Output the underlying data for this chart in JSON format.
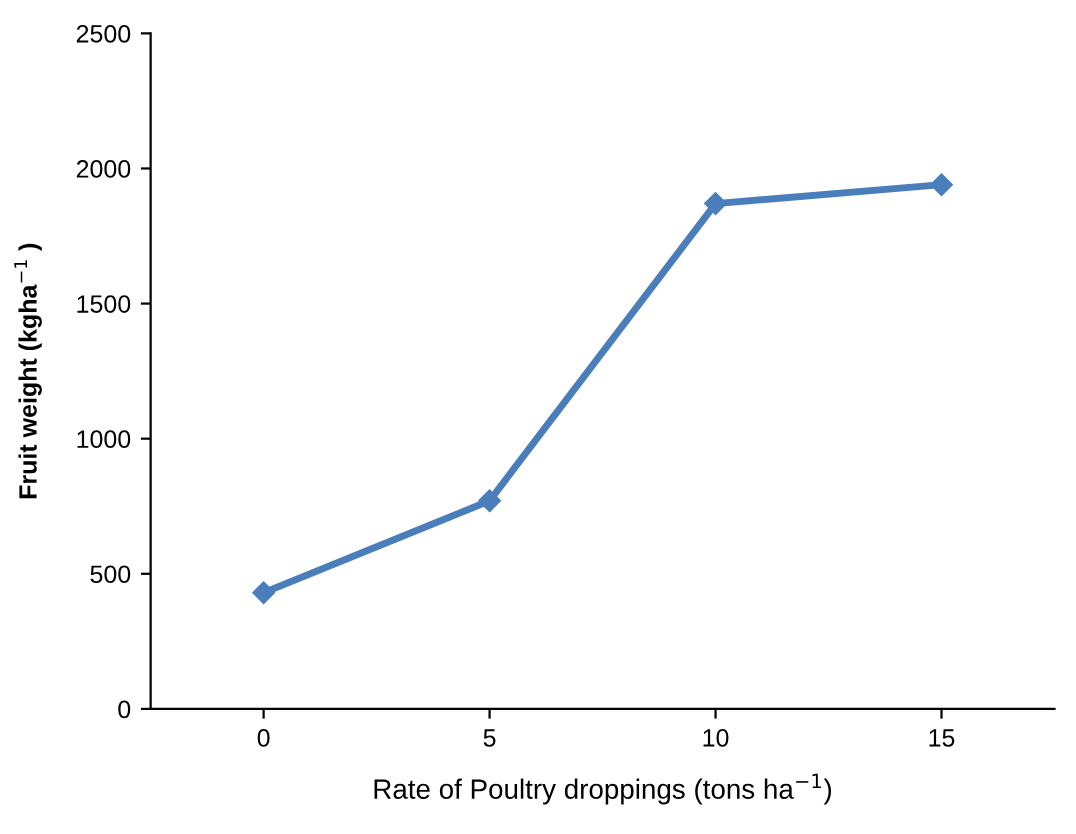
{
  "chart_data": {
    "type": "line",
    "xlabel": "Rate of Poultry droppings (tons ha$^{−1}$)",
    "ylabel": "Fruit weight (kgha$^{−1}$ )",
    "categories": [
      "0",
      "5",
      "10",
      "15"
    ],
    "series": [
      {
        "color": "#4a7ebb",
        "values": [
          430,
          770,
          1870,
          1940
        ]
      }
    ],
    "ylim": [
      0,
      2500
    ],
    "yticks": [
      0,
      500,
      1000,
      1500,
      2000,
      2500
    ],
    "grid": false,
    "legend": false,
    "marker": "diamond",
    "line_style": "solid"
  }
}
